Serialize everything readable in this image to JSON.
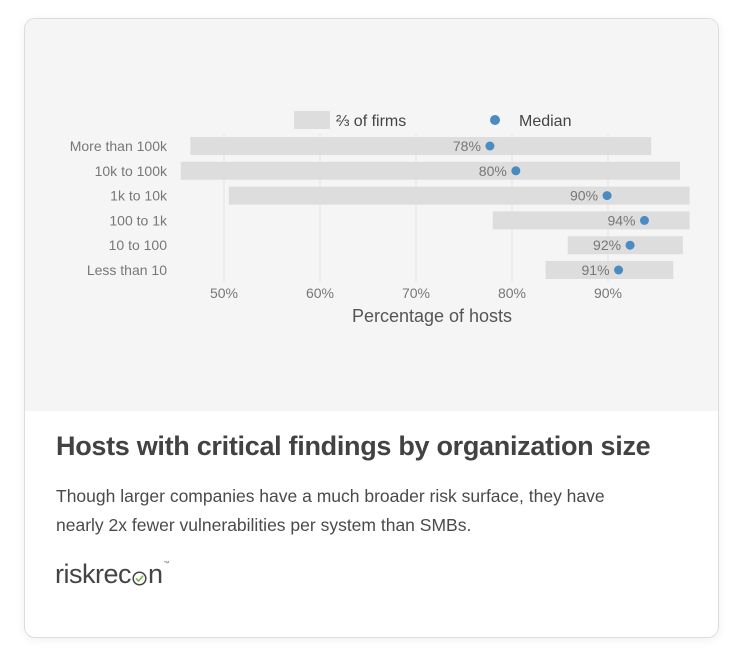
{
  "card": {
    "title": "Hosts with critical findings by organization size",
    "description": "Though larger companies have a much broader risk surface, they have nearly 2x fewer vulnerabilities per system than SMBs.",
    "logo_prefix": "riskrec",
    "logo_suffix": "n",
    "logo_trademark": "™"
  },
  "chart_data": {
    "type": "dot-range",
    "xlabel": "Percentage of hosts",
    "xlim": [
      45,
      98
    ],
    "xticks": [
      50,
      60,
      70,
      80,
      90
    ],
    "xtick_labels": [
      "50%",
      "60%",
      "70%",
      "80%",
      "90%"
    ],
    "legend": {
      "range_label": "⅔ of firms",
      "median_label": "Median",
      "placement": "top"
    },
    "grid": true,
    "colors": {
      "range": "#dddddd",
      "median": "#4a8bc2",
      "text": "#777777",
      "grid": "#e2e2e2"
    },
    "categories": [
      "More than 100k",
      "10k to 100k",
      "1k to 10k",
      "100 to 1k",
      "10 to 100",
      "Less than 10"
    ],
    "range_low": [
      46.5,
      45.5,
      50.5,
      78,
      85.8,
      83.5
    ],
    "range_high": [
      94.5,
      97.5,
      98.5,
      98.5,
      97.8,
      96.8
    ],
    "median": [
      77.7,
      80.4,
      89.9,
      93.8,
      92.3,
      91.1
    ],
    "median_labels": [
      "78%",
      "80%",
      "90%",
      "94%",
      "92%",
      "91%"
    ]
  }
}
